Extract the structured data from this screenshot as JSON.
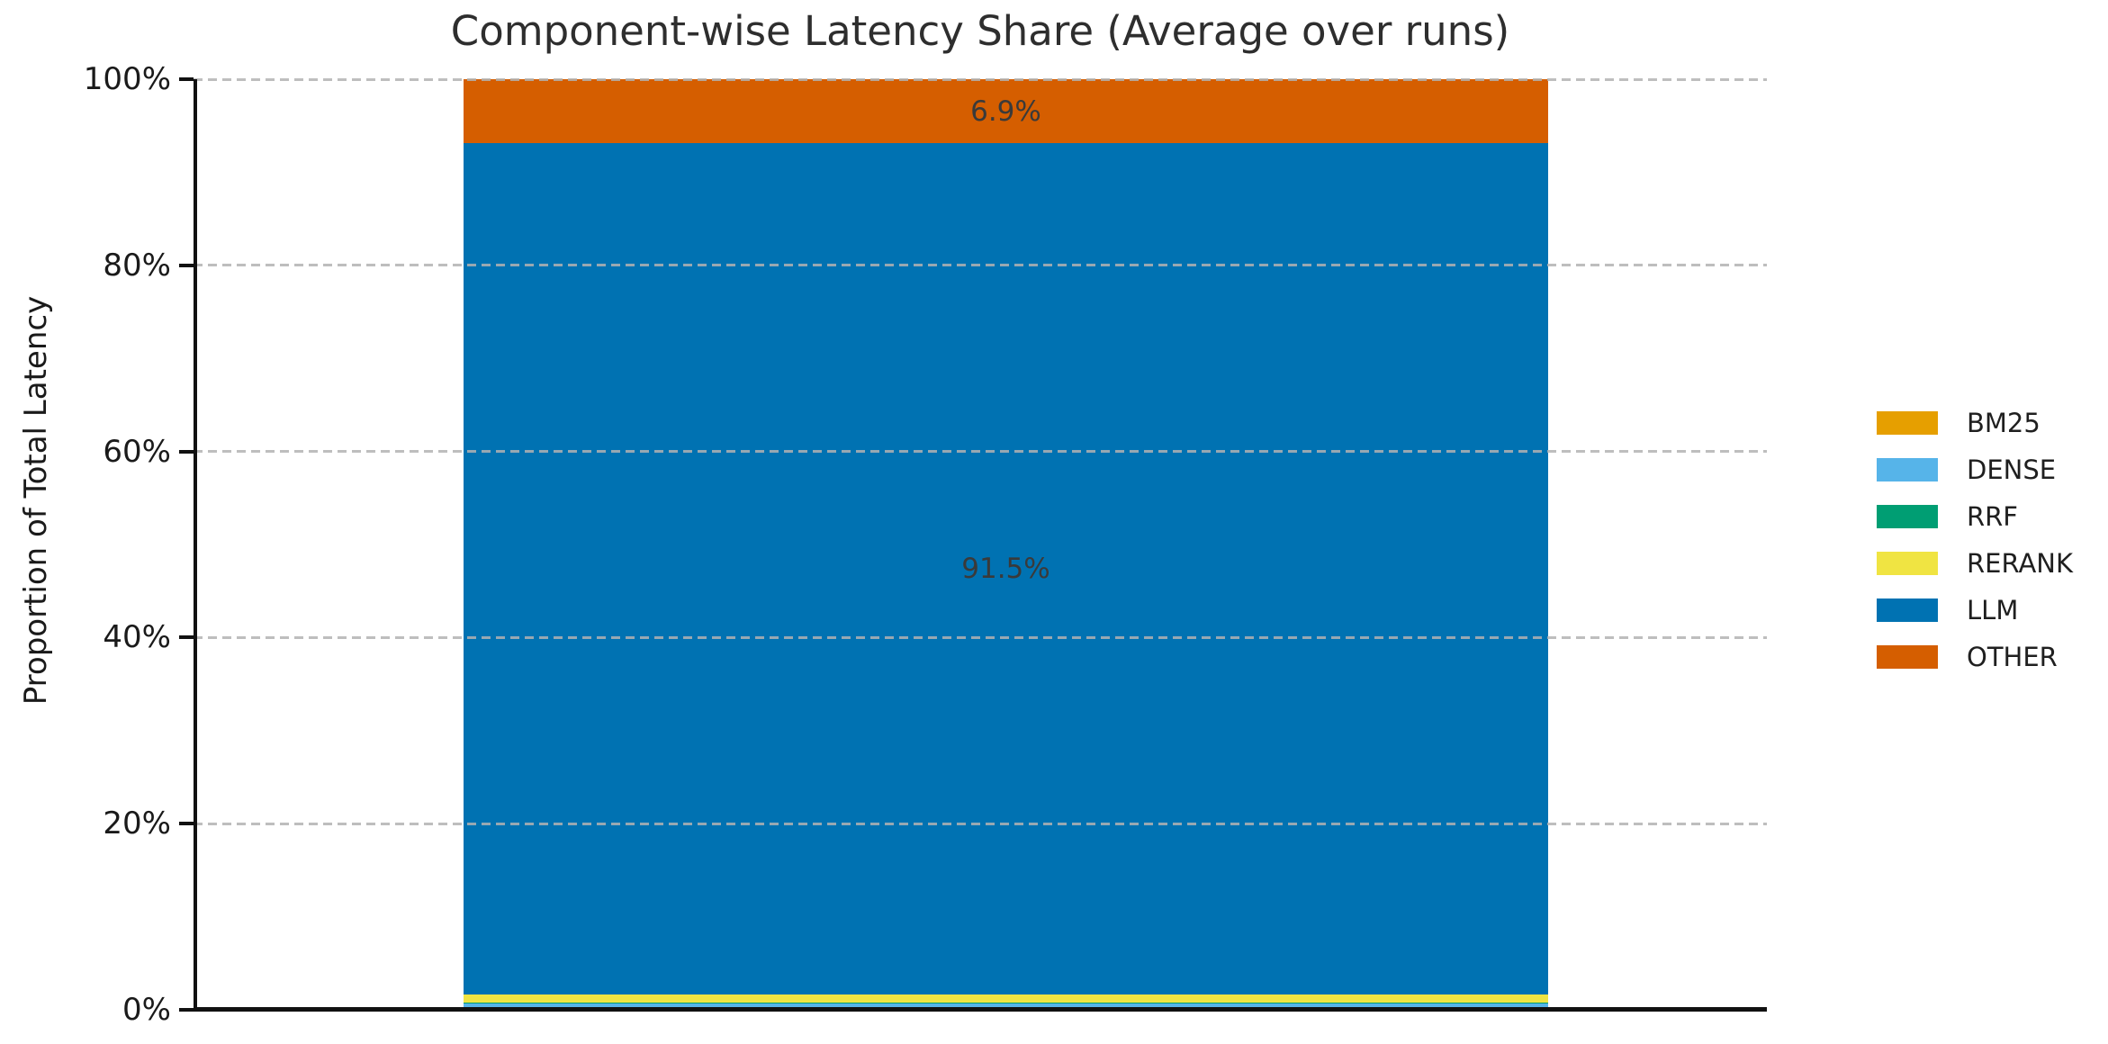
{
  "chart_data": {
    "type": "bar",
    "stacked": true,
    "title": "Component-wise Latency Share (Average over runs)",
    "xlabel": "",
    "ylabel": "Proportion of Total Latency",
    "ylim": [
      0,
      100
    ],
    "yticks": [
      {
        "value": 0,
        "label": "0%"
      },
      {
        "value": 20,
        "label": "20%"
      },
      {
        "value": 40,
        "label": "40%"
      },
      {
        "value": 60,
        "label": "60%"
      },
      {
        "value": 80,
        "label": "80%"
      },
      {
        "value": 100,
        "label": "100%"
      }
    ],
    "grid": "horizontal-dashed",
    "grid_color": "rgba(178,178,178,0.85)",
    "categories": [
      ""
    ],
    "series": [
      {
        "name": "BM25",
        "color": "#E69F00",
        "value_pct": 0.3,
        "value_label": ""
      },
      {
        "name": "DENSE",
        "color": "#56B4E9",
        "value_pct": 0.45,
        "value_label": ""
      },
      {
        "name": "RRF",
        "color": "#009E73",
        "value_pct": 0.02,
        "value_label": ""
      },
      {
        "name": "RERANK",
        "color": "#F0E442",
        "value_pct": 0.83,
        "value_label": ""
      },
      {
        "name": "LLM",
        "color": "#0072B2",
        "value_pct": 91.5,
        "value_label": "91.5%"
      },
      {
        "name": "OTHER",
        "color": "#D55E00",
        "value_pct": 6.9,
        "value_label": "6.9%"
      }
    ],
    "legend_position": "center-right-outside",
    "axis_color": "#111111",
    "text_color": "#1a1a1a",
    "value_label_color": "#3a3a3a"
  }
}
